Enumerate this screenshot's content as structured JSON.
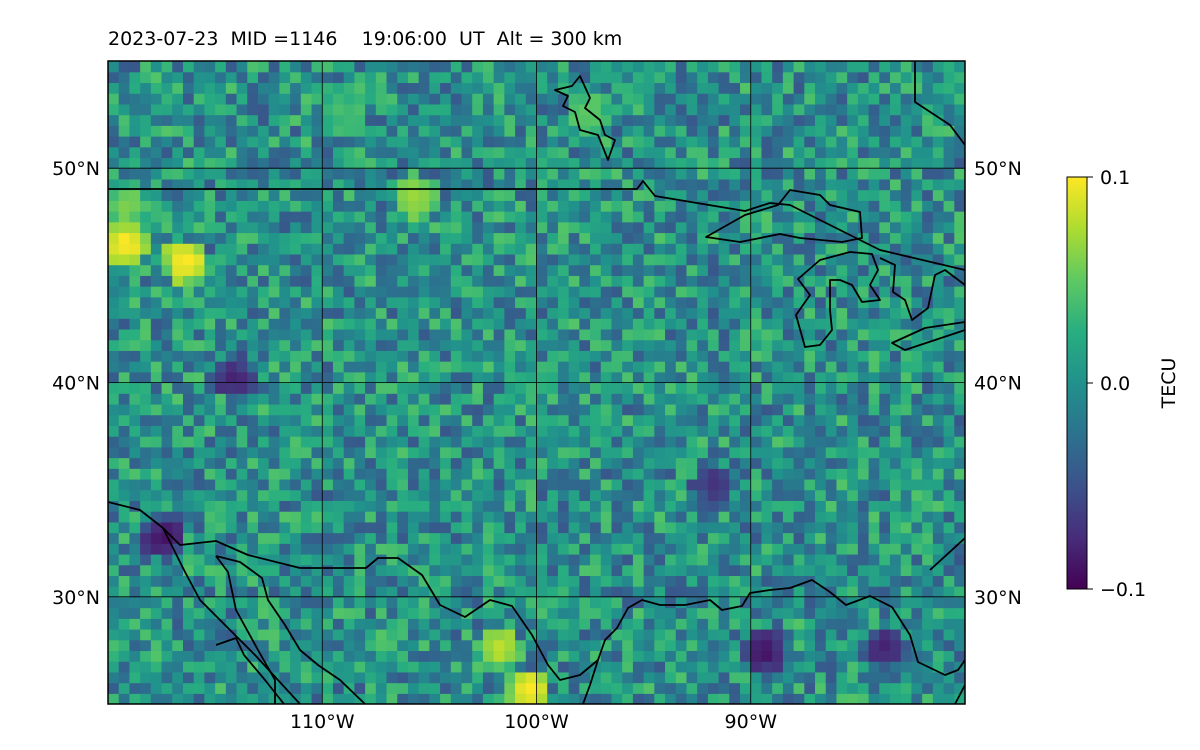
{
  "title": {
    "date": "2023-07-23",
    "mid": "MID =1146",
    "time": "19:06:00  UT",
    "alt": "Alt = 300 km"
  },
  "chart_data": {
    "type": "heatmap",
    "title": "2023-07-23  MID =1146    19:06:00  UT  Alt = 300 km",
    "xlabel": "",
    "ylabel": "",
    "xlim": [
      -120,
      -80
    ],
    "ylim": [
      25,
      55
    ],
    "xticks": [
      {
        "value": -110,
        "label": "110°W"
      },
      {
        "value": -100,
        "label": "100°W"
      },
      {
        "value": -90,
        "label": "90°W"
      }
    ],
    "yticks": [
      {
        "value": 30,
        "label": "30°N"
      },
      {
        "value": 40,
        "label": "40°N"
      },
      {
        "value": 50,
        "label": "50°N"
      }
    ],
    "grid": true,
    "colormap": "viridis",
    "colorbar": {
      "label": "TECU",
      "range": [
        -0.1,
        0.1
      ],
      "ticks": [
        {
          "value": 0.1,
          "label": "0.1"
        },
        {
          "value": 0.0,
          "label": "0.0"
        },
        {
          "value": -0.1,
          "label": "−0.1"
        }
      ],
      "placement": "right"
    },
    "notable_values": [
      {
        "lon": -119.4,
        "lat": 46.3,
        "value": 0.1
      },
      {
        "lon": -116.6,
        "lat": 45.4,
        "value": 0.1
      },
      {
        "lon": -119.4,
        "lat": 48.0,
        "value": 0.06
      },
      {
        "lon": -105.9,
        "lat": 48.4,
        "value": 0.07
      },
      {
        "lon": -100.6,
        "lat": 25.4,
        "value": 0.1
      },
      {
        "lon": -102.0,
        "lat": 27.4,
        "value": 0.08
      },
      {
        "lon": -109.4,
        "lat": 52.5,
        "value": 0.04
      },
      {
        "lon": -97.8,
        "lat": 52.3,
        "value": 0.05
      },
      {
        "lon": -117.6,
        "lat": 32.6,
        "value": -0.09
      },
      {
        "lon": -114.4,
        "lat": 40.0,
        "value": -0.08
      },
      {
        "lon": -89.6,
        "lat": 27.2,
        "value": -0.09
      },
      {
        "lon": -84.0,
        "lat": 27.4,
        "value": -0.08
      },
      {
        "lon": -92.0,
        "lat": 35.0,
        "value": -0.07
      }
    ],
    "field_note": "background field of small-scale TEC perturbations roughly between -0.05 and 0.05 TECU"
  }
}
